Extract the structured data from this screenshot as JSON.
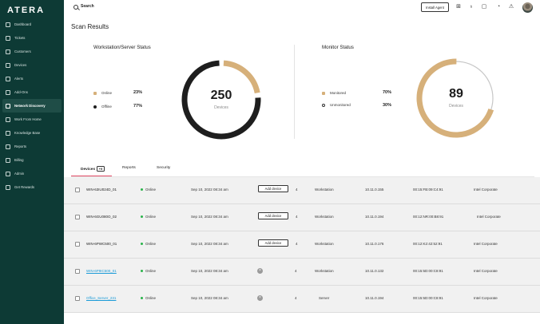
{
  "brand": {
    "logo": "ATERA"
  },
  "sidebar": {
    "items": [
      {
        "label": "Dashboard",
        "icon": "dashboard-icon"
      },
      {
        "label": "Tickets",
        "icon": "ticket-icon"
      },
      {
        "label": "Customers",
        "icon": "customers-icon"
      },
      {
        "label": "Devices",
        "icon": "monitor-icon"
      },
      {
        "label": "Alerts",
        "icon": "bell-icon"
      },
      {
        "label": "Add-Ons",
        "icon": "addons-icon"
      },
      {
        "label": "Network Discovery",
        "icon": "network-icon",
        "active": true
      },
      {
        "label": "Work From Home",
        "icon": "home-icon"
      },
      {
        "label": "Knowledge Base",
        "icon": "book-icon"
      },
      {
        "label": "Reports",
        "icon": "reports-icon"
      },
      {
        "label": "Billing",
        "icon": "billing-icon"
      },
      {
        "label": "Admin",
        "icon": "gear-icon"
      },
      {
        "label": "Get Rewards",
        "icon": "gift-icon"
      }
    ]
  },
  "topbar": {
    "search_label": "Search",
    "install_agent": "Install Agent",
    "icons": [
      "plus-square-icon",
      "lightbulb-icon",
      "chat-icon",
      "bell-icon",
      "warning-icon",
      "avatar"
    ]
  },
  "page": {
    "title": "Scan Results"
  },
  "workstation_status": {
    "title": "Workstation/Server Status",
    "legend": [
      {
        "label": "Online",
        "pct": "23%",
        "color": "#d6b07a"
      },
      {
        "label": "Offline",
        "pct": "77%",
        "color": "#1e1e1e"
      }
    ],
    "total": "250",
    "unit": "Devices",
    "online_fraction": 0.23
  },
  "monitor_status": {
    "title": "Monitor Status",
    "legend": [
      {
        "label": "Monitored",
        "pct": "70%",
        "color": "#d6b07a"
      },
      {
        "label": "Unmonitored",
        "pct": "30%",
        "color": "#ffffff"
      }
    ],
    "total": "89",
    "unit": "Devices",
    "monitored_fraction": 0.7
  },
  "tabs": [
    {
      "label": "Devices",
      "badge": "+9",
      "active": true
    },
    {
      "label": "Reports"
    },
    {
      "label": "Security"
    }
  ],
  "devices": [
    {
      "name": "WIN-63IU024D_01",
      "status": "Online",
      "date": "Sep 10, 2022 08:34 am",
      "action": "Add device",
      "count": "4",
      "type": "Workstation",
      "ip": "10.11.0.155",
      "mac": "00:15:FB:09:C4:91",
      "vendor": "Intel Corporate",
      "link": false
    },
    {
      "name": "WIN-6GU080O_02",
      "status": "Online",
      "date": "Sep 10, 2022 08:34 am",
      "action": "Add device",
      "count": "4",
      "type": "Workstation",
      "ip": "10.11.0.194",
      "mac": "00:12:NR:00:B8:91",
      "vendor": "Intel Corporate",
      "link": false
    },
    {
      "name": "WIN-6PWC500_01",
      "status": "Online",
      "date": "Sep 10, 2022 08:34 am",
      "action": "Add device",
      "count": "4",
      "type": "Workstation",
      "ip": "10.11.0.176",
      "mac": "00:12:K2:42:52:91",
      "vendor": "Intel Corporate",
      "link": false
    },
    {
      "name": "WIN-6P9IC500_01",
      "status": "Online",
      "date": "Sep 10, 2022 08:34 am",
      "action": "",
      "count": "4",
      "type": "Workstation",
      "ip": "10.11.0.132",
      "mac": "00:15:5D:00:C8:91",
      "vendor": "Intel Corporate",
      "link": true
    },
    {
      "name": "Office_Server_231",
      "status": "Online",
      "date": "Sep 10, 2022 08:34 am",
      "action": "",
      "count": "4",
      "type": "Server",
      "ip": "10.11.0.194",
      "mac": "00:15:5D:00:C8:91",
      "vendor": "Intel Corporate",
      "link": true
    }
  ]
}
